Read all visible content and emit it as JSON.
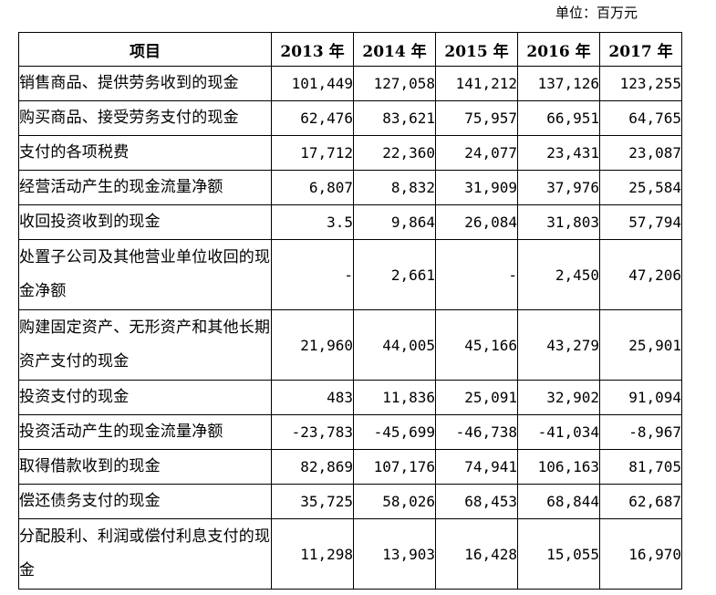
{
  "unit": "单位：百万元",
  "header": {
    "item": "项目",
    "years": [
      "2013 年",
      "2014 年",
      "2015 年",
      "2016 年",
      "2017 年"
    ]
  },
  "rows": [
    {
      "item": "销售商品、提供劳务收到的现金",
      "values": [
        "101,449",
        "127,058",
        "141,212",
        "137,126",
        "123,255"
      ]
    },
    {
      "item": "购买商品、接受劳务支付的现金",
      "values": [
        "62,476",
        "83,621",
        "75,957",
        "66,951",
        "64,765"
      ]
    },
    {
      "item": "支付的各项税费",
      "values": [
        "17,712",
        "22,360",
        "24,077",
        "23,431",
        "23,087"
      ]
    },
    {
      "item": "经营活动产生的现金流量净额",
      "values": [
        "6,807",
        "8,832",
        "31,909",
        "37,976",
        "25,584"
      ]
    },
    {
      "item": "收回投资收到的现金",
      "values": [
        "3.5",
        "9,864",
        "26,084",
        "31,803",
        "57,794"
      ]
    },
    {
      "item": "处置子公司及其他营业单位收回的现金净额",
      "values": [
        "-",
        "2,661",
        "-",
        "2,450",
        "47,206"
      ]
    },
    {
      "item": "购建固定资产、无形资产和其他长期资产支付的现金",
      "values": [
        "21,960",
        "44,005",
        "45,166",
        "43,279",
        "25,901"
      ]
    },
    {
      "item": "投资支付的现金",
      "values": [
        "483",
        "11,836",
        "25,091",
        "32,902",
        "91,094"
      ]
    },
    {
      "item": "投资活动产生的现金流量净额",
      "values": [
        "-23,783",
        "-45,699",
        "-46,738",
        "-41,034",
        "-8,967"
      ]
    },
    {
      "item": "取得借款收到的现金",
      "values": [
        "82,869",
        "107,176",
        "74,941",
        "106,163",
        "81,705"
      ]
    },
    {
      "item": "偿还债务支付的现金",
      "values": [
        "35,725",
        "58,026",
        "68,453",
        "68,844",
        "62,687"
      ]
    },
    {
      "item": "分配股利、利润或偿付利息支付的现金",
      "values": [
        "11,298",
        "13,903",
        "16,428",
        "15,055",
        "16,970"
      ]
    }
  ]
}
